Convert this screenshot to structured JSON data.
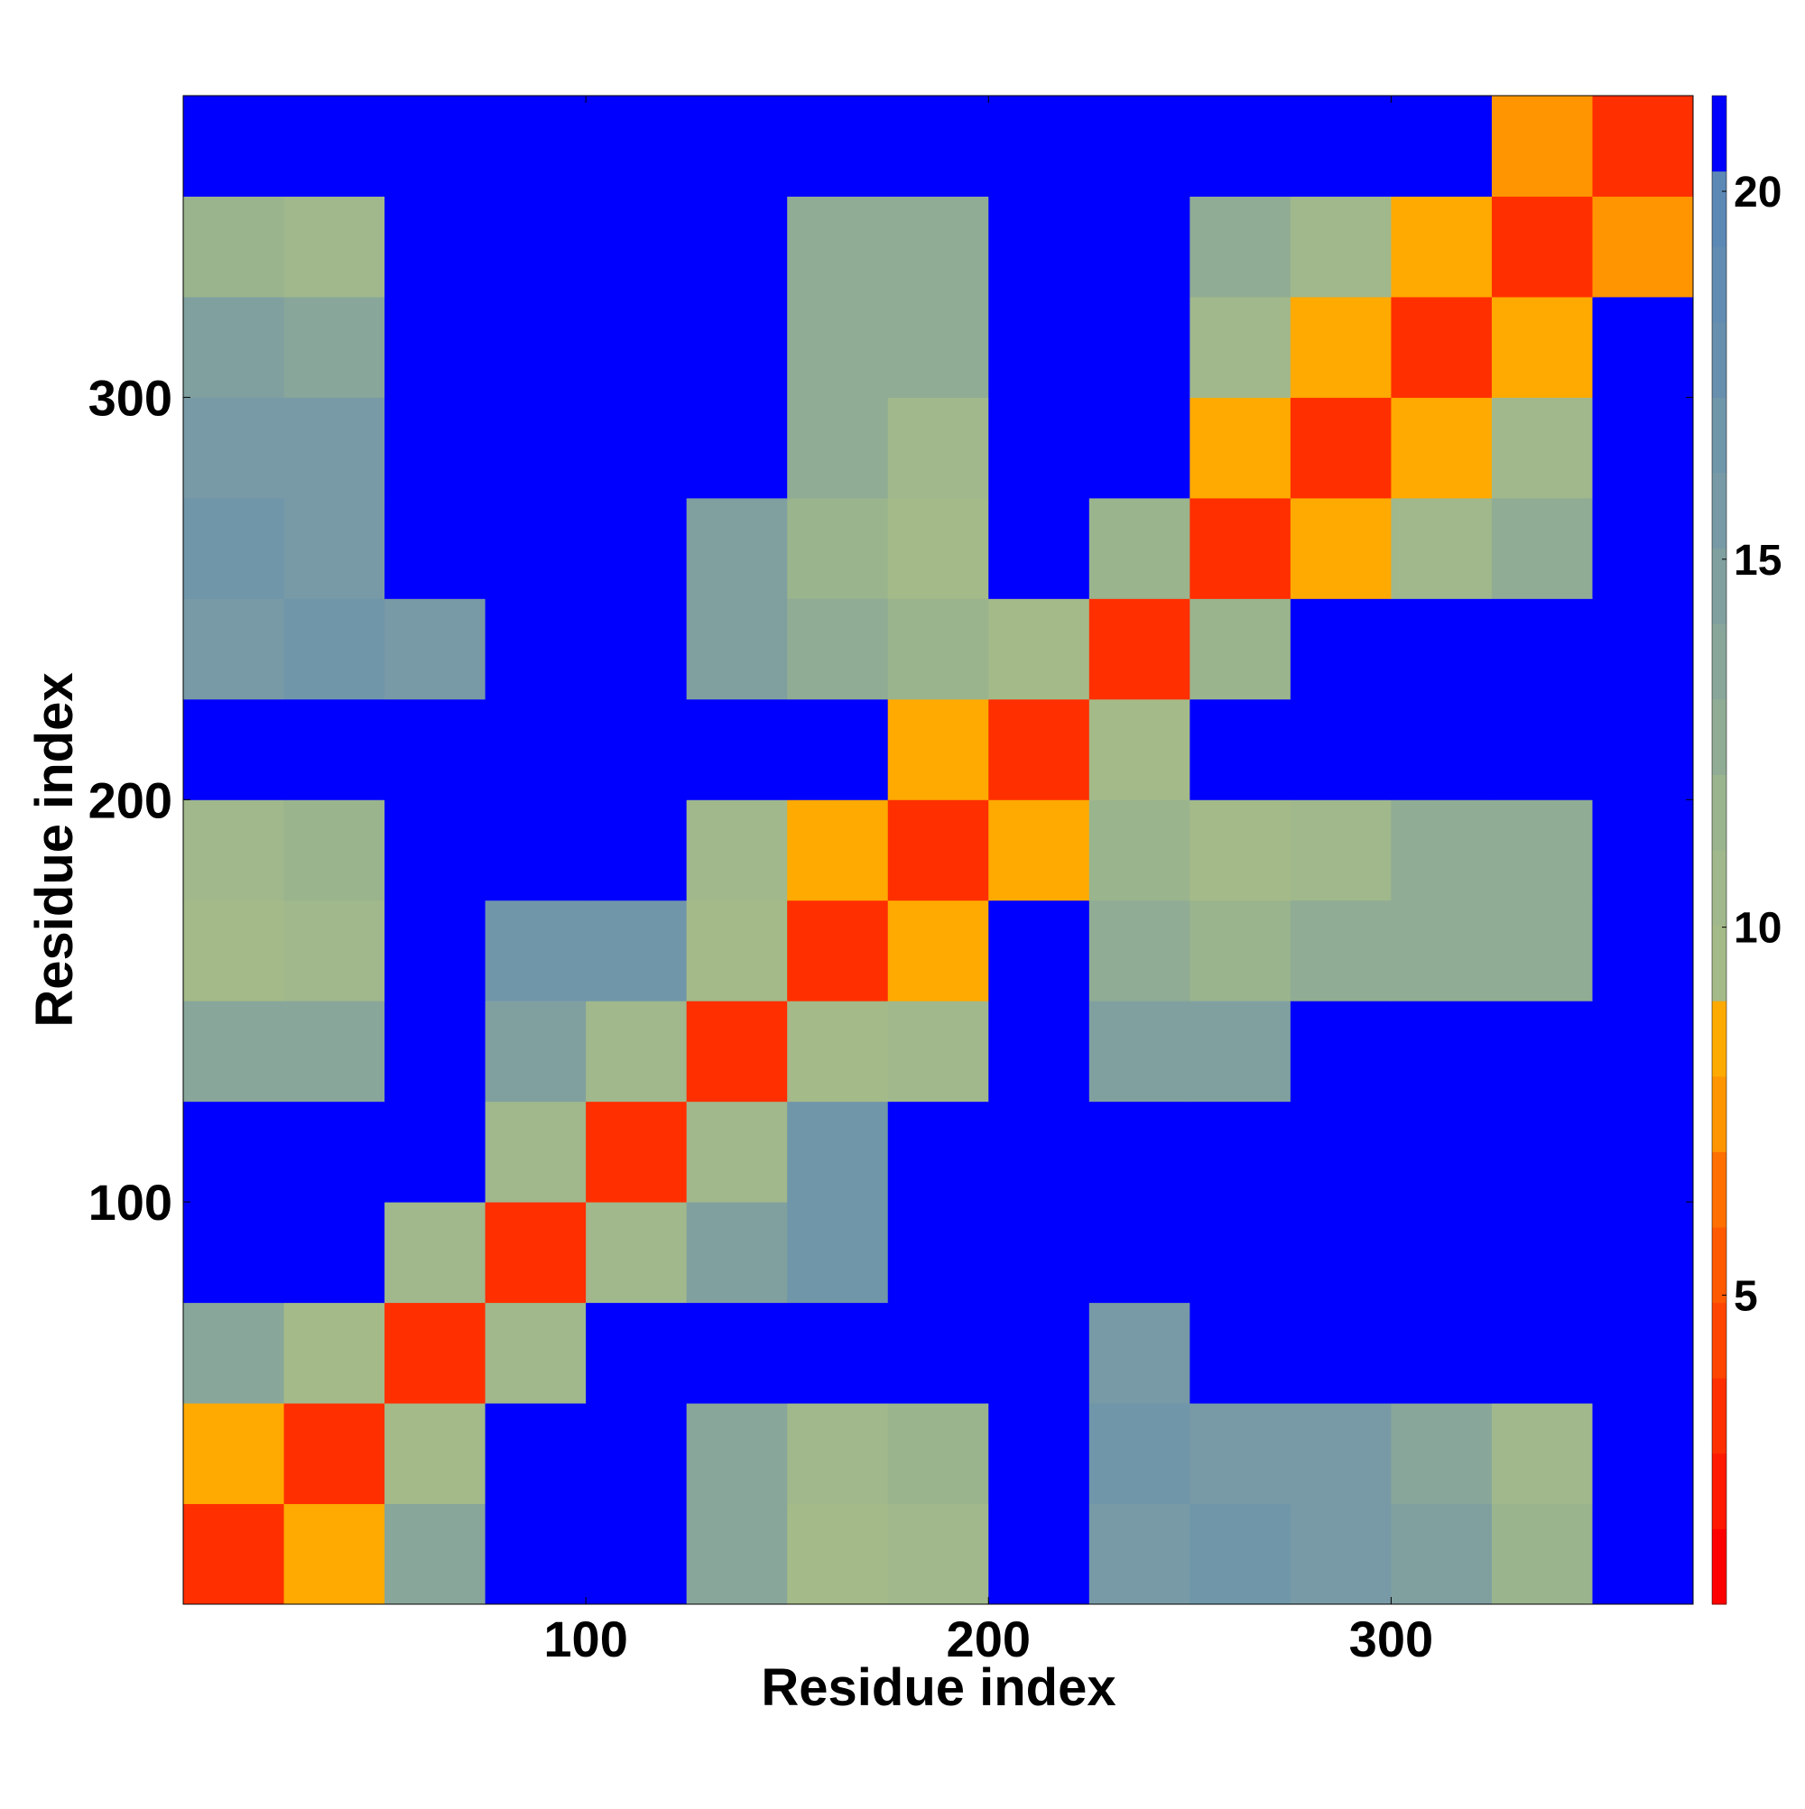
{
  "chart_data": {
    "type": "heatmap",
    "xlabel": "Residue index",
    "ylabel": "Residue index",
    "x": [
      12.5,
      37.5,
      62.5,
      87.5,
      112.5,
      137.5,
      162.5,
      187.5,
      212.5,
      237.5,
      262.5,
      287.5,
      312.5,
      337.5,
      362.5
    ],
    "y": [
      12.5,
      37.5,
      62.5,
      87.5,
      112.5,
      137.5,
      162.5,
      187.5,
      212.5,
      237.5,
      262.5,
      287.5,
      312.5,
      337.5,
      362.5
    ],
    "values": [
      [
        3,
        9,
        14,
        21,
        21,
        14,
        10,
        11,
        21,
        16,
        17,
        16,
        15,
        12,
        21
      ],
      [
        9,
        3,
        10,
        21,
        21,
        14,
        11,
        12,
        21,
        17,
        16,
        16,
        14,
        11,
        21
      ],
      [
        14,
        10,
        3,
        11,
        21,
        21,
        21,
        21,
        21,
        16,
        21,
        21,
        21,
        21,
        21
      ],
      [
        21,
        21,
        11,
        3,
        11,
        15,
        17,
        21,
        21,
        21,
        21,
        21,
        21,
        21,
        21
      ],
      [
        21,
        21,
        21,
        11,
        3,
        11,
        17,
        21,
        21,
        21,
        21,
        21,
        21,
        21,
        21
      ],
      [
        14,
        14,
        21,
        15,
        11,
        3,
        10,
        11,
        21,
        15,
        15,
        21,
        21,
        21,
        21
      ],
      [
        10,
        11,
        21,
        17,
        17,
        10,
        3,
        8,
        21,
        13,
        12,
        13,
        13,
        13,
        21
      ],
      [
        11,
        12,
        21,
        21,
        21,
        11,
        8,
        3,
        9,
        12,
        10,
        11,
        13,
        13,
        21
      ],
      [
        21,
        21,
        21,
        21,
        21,
        21,
        21,
        9,
        3,
        10,
        21,
        21,
        21,
        21,
        21
      ],
      [
        16,
        17,
        16,
        21,
        21,
        15,
        13,
        12,
        10,
        3,
        12,
        21,
        21,
        21,
        21
      ],
      [
        17,
        16,
        21,
        21,
        21,
        15,
        12,
        10,
        21,
        12,
        3,
        9,
        11,
        13,
        21
      ],
      [
        16,
        16,
        21,
        21,
        21,
        21,
        13,
        11,
        21,
        21,
        9,
        3,
        9,
        11,
        21
      ],
      [
        15,
        14,
        21,
        21,
        21,
        21,
        13,
        13,
        21,
        21,
        11,
        9,
        3,
        9,
        21
      ],
      [
        12,
        11,
        21,
        21,
        21,
        21,
        13,
        13,
        21,
        21,
        13,
        11,
        9,
        3,
        7
      ],
      [
        21,
        21,
        21,
        21,
        21,
        21,
        21,
        21,
        21,
        21,
        21,
        21,
        21,
        7,
        3
      ]
    ],
    "xlim": [
      0,
      375
    ],
    "ylim": [
      0,
      375
    ],
    "xticks": [
      100,
      200,
      300
    ],
    "yticks": [
      100,
      200,
      300
    ],
    "clim": [
      0.8,
      21.3
    ],
    "cticks": [
      5,
      10,
      15,
      20
    ],
    "colormap": [
      "#ff0000",
      "#ff1a00",
      "#ff2f00",
      "#ff4500",
      "#ff5a00",
      "#ff7000",
      "#ff9500",
      "#ffaa00",
      "#a4ba88",
      "#a0b88c",
      "#9ab48e",
      "#90ac94",
      "#88a69a",
      "#80a0a0",
      "#789aa6",
      "#7096aa",
      "#6890ae",
      "#628cb2",
      "#5c88b6",
      "#0000ff"
    ]
  }
}
